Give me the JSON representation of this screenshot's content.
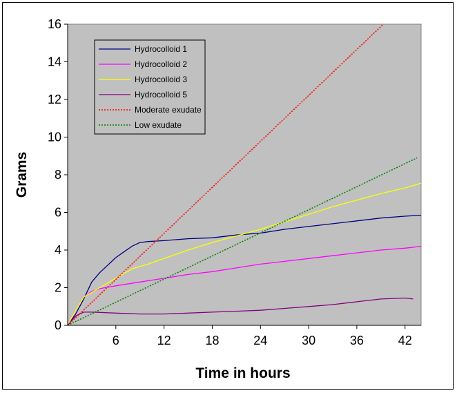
{
  "chart_data": {
    "type": "line",
    "xlabel": "Time in hours",
    "ylabel": "Grams",
    "xlim": [
      0,
      44
    ],
    "ylim": [
      0,
      16
    ],
    "x_ticks": [
      6,
      12,
      18,
      24,
      30,
      36,
      42
    ],
    "y_ticks": [
      0,
      2,
      4,
      6,
      8,
      10,
      12,
      14,
      16
    ],
    "grid": false,
    "legend_position": "top-left",
    "plot_background": "#C0C0C0",
    "series": [
      {
        "name": "Hydrocolloid 1",
        "color": "#000080",
        "style": "solid",
        "x": [
          0,
          1,
          2,
          3,
          4,
          5,
          6,
          7,
          8,
          9,
          10,
          12,
          15,
          18,
          21,
          24,
          27,
          30,
          33,
          36,
          39,
          42,
          44
        ],
        "y": [
          0,
          0.6,
          1.4,
          2.3,
          2.8,
          3.2,
          3.6,
          3.9,
          4.2,
          4.4,
          4.45,
          4.5,
          4.6,
          4.65,
          4.8,
          4.9,
          5.1,
          5.25,
          5.4,
          5.55,
          5.7,
          5.8,
          5.85
        ]
      },
      {
        "name": "Hydrocolloid 2",
        "color": "#FF00FF",
        "style": "solid",
        "x": [
          0,
          1,
          2,
          3,
          4,
          6,
          9,
          12,
          15,
          18,
          21,
          24,
          27,
          30,
          33,
          36,
          39,
          42,
          44
        ],
        "y": [
          0,
          0.8,
          1.5,
          1.8,
          1.95,
          2.1,
          2.3,
          2.5,
          2.7,
          2.85,
          3.05,
          3.25,
          3.4,
          3.55,
          3.7,
          3.85,
          4.0,
          4.1,
          4.2
        ]
      },
      {
        "name": "Hydrocolloid 3",
        "color": "#FFFF00",
        "style": "solid",
        "x": [
          0,
          1,
          2,
          3,
          4,
          6,
          8,
          10,
          12,
          15,
          18,
          21,
          24,
          27,
          30,
          33,
          36,
          39,
          42,
          44
        ],
        "y": [
          0,
          0.8,
          1.5,
          1.75,
          2.0,
          2.5,
          3.0,
          3.25,
          3.55,
          4.0,
          4.4,
          4.75,
          5.1,
          5.5,
          5.9,
          6.3,
          6.65,
          7.0,
          7.3,
          7.55
        ]
      },
      {
        "name": "Hydrocolloid 5",
        "color": "#800080",
        "style": "solid",
        "x": [
          0,
          1,
          2,
          3,
          6,
          9,
          12,
          15,
          18,
          21,
          24,
          27,
          30,
          33,
          36,
          39,
          42,
          43
        ],
        "y": [
          0,
          0.5,
          0.7,
          0.7,
          0.65,
          0.6,
          0.6,
          0.65,
          0.7,
          0.75,
          0.8,
          0.9,
          1.0,
          1.1,
          1.25,
          1.4,
          1.45,
          1.4
        ]
      },
      {
        "name": "Moderate exudate",
        "color": "#FF0000",
        "style": "dotted",
        "x": [
          0,
          39.3
        ],
        "y": [
          0,
          16
        ]
      },
      {
        "name": "Low exudate",
        "color": "#008000",
        "style": "dotted",
        "x": [
          0,
          43.5
        ],
        "y": [
          0,
          8.9
        ]
      }
    ]
  }
}
